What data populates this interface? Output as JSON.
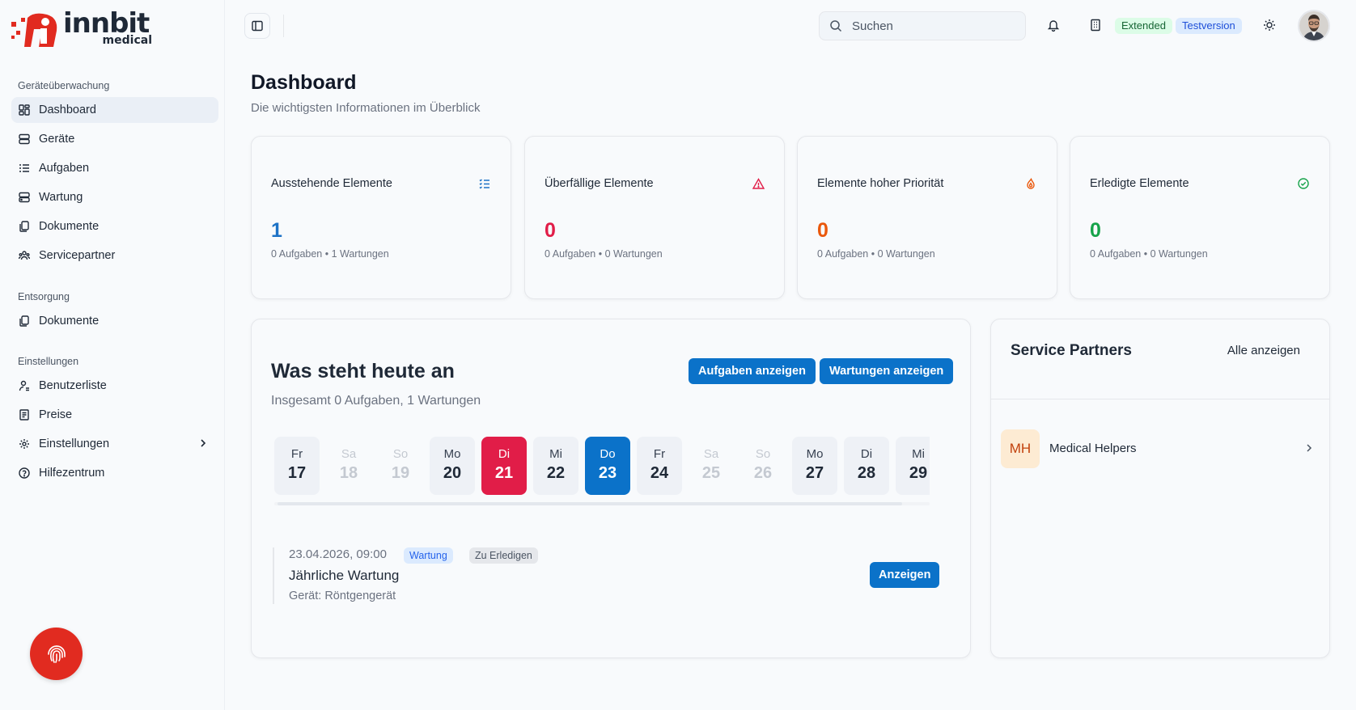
{
  "logo": {
    "word": "innbit",
    "sub": "medical"
  },
  "sidebar": {
    "sections": [
      {
        "heading": "Geräteüberwachung",
        "items": [
          {
            "label": "Dashboard",
            "icon": "dashboard-icon",
            "active": true
          },
          {
            "label": "Geräte",
            "icon": "device-icon"
          },
          {
            "label": "Aufgaben",
            "icon": "tasks-icon"
          },
          {
            "label": "Wartung",
            "icon": "maintenance-icon"
          },
          {
            "label": "Dokumente",
            "icon": "documents-icon"
          },
          {
            "label": "Servicepartner",
            "icon": "partners-icon"
          }
        ]
      },
      {
        "heading": "Entsorgung",
        "items": [
          {
            "label": "Dokumente",
            "icon": "documents-icon"
          }
        ]
      },
      {
        "heading": "Einstellungen",
        "items": [
          {
            "label": "Benutzerliste",
            "icon": "user-list-icon"
          },
          {
            "label": "Preise",
            "icon": "prices-icon"
          },
          {
            "label": "Einstellungen",
            "icon": "settings-icon"
          },
          {
            "label": "Hilfezentrum",
            "icon": "help-icon"
          }
        ]
      }
    ]
  },
  "header": {
    "search_placeholder": "Suchen",
    "badge_extended": "Extended",
    "badge_trial": "Testversion"
  },
  "page": {
    "title": "Dashboard",
    "subtitle": "Die wichtigsten Informationen im Überblick"
  },
  "stats": [
    {
      "title": "Ausstehende Elemente",
      "value": "1",
      "note": "0 Aufgaben • 1 Wartungen",
      "color": "#1d72c6",
      "icon": "list-check-icon"
    },
    {
      "title": "Überfällige Elemente",
      "value": "0",
      "note": "0 Aufgaben • 0 Wartungen",
      "color": "#e11d48",
      "icon": "warning-icon"
    },
    {
      "title": "Elemente hoher Priorität",
      "value": "0",
      "note": "0 Aufgaben • 0 Wartungen",
      "color": "#ea580c",
      "icon": "flame-icon"
    },
    {
      "title": "Erledigte Elemente",
      "value": "0",
      "note": "0 Aufgaben • 0 Wartungen",
      "color": "#16a34a",
      "icon": "check-circle-icon"
    }
  ],
  "today": {
    "title": "Was steht heute an",
    "subtitle": "Insgesamt 0 Aufgaben, 1 Wartungen",
    "btn_tasks": "Aufgaben anzeigen",
    "btn_maint": "Wartungen anzeigen",
    "days": [
      {
        "name": "Fr",
        "num": "17",
        "state": "normal"
      },
      {
        "name": "Sa",
        "num": "18",
        "state": "weekend"
      },
      {
        "name": "So",
        "num": "19",
        "state": "weekend"
      },
      {
        "name": "Mo",
        "num": "20",
        "state": "normal"
      },
      {
        "name": "Di",
        "num": "21",
        "state": "today"
      },
      {
        "name": "Mi",
        "num": "22",
        "state": "normal"
      },
      {
        "name": "Do",
        "num": "23",
        "state": "selected"
      },
      {
        "name": "Fr",
        "num": "24",
        "state": "normal"
      },
      {
        "name": "Sa",
        "num": "25",
        "state": "weekend"
      },
      {
        "name": "So",
        "num": "26",
        "state": "weekend"
      },
      {
        "name": "Mo",
        "num": "27",
        "state": "normal"
      },
      {
        "name": "Di",
        "num": "28",
        "state": "normal"
      },
      {
        "name": "Mi",
        "num": "29",
        "state": "normal"
      },
      {
        "name": "",
        "num": "",
        "state": "cut"
      }
    ],
    "task": {
      "datetime": "23.04.2026, 09:00",
      "tag_type": "Wartung",
      "tag_status": "Zu Erledigen",
      "title": "Jährliche Wartung",
      "device": "Gerät: Röntgengerät",
      "btn": "Anzeigen"
    }
  },
  "service": {
    "title": "Service Partners",
    "all": "Alle anzeigen",
    "partners": [
      {
        "initials": "MH",
        "name": "Medical Helpers"
      }
    ]
  }
}
